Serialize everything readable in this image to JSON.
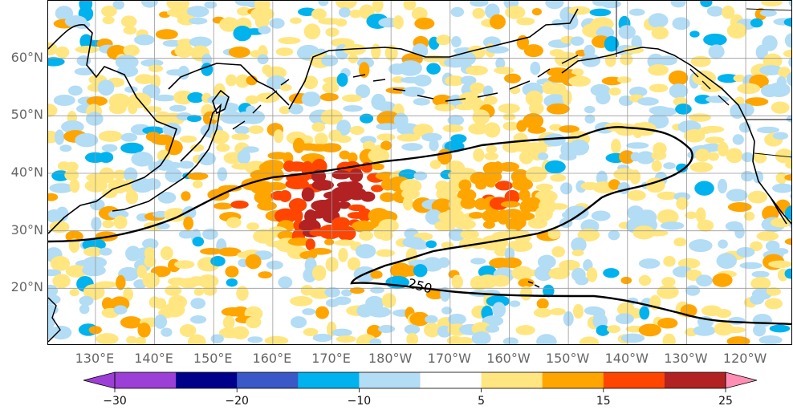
{
  "map": {
    "lat_labels": [
      {
        "text": "60°N",
        "lat": 60
      },
      {
        "text": "50°N",
        "lat": 50
      },
      {
        "text": "40°N",
        "lat": 40
      },
      {
        "text": "30°N",
        "lat": 30
      },
      {
        "text": "20°N",
        "lat": 20
      }
    ],
    "lon_labels": [
      {
        "text": "130°E",
        "lon": 130
      },
      {
        "text": "140°E",
        "lon": 140
      },
      {
        "text": "150°E",
        "lon": 150
      },
      {
        "text": "160°E",
        "lon": 160
      },
      {
        "text": "170°E",
        "lon": 170
      },
      {
        "text": "180°W",
        "lon": 180
      },
      {
        "text": "170°W",
        "lon": 190
      },
      {
        "text": "160°W",
        "lon": 200
      },
      {
        "text": "150°W",
        "lon": 210
      },
      {
        "text": "140°W",
        "lon": 220
      },
      {
        "text": "130°W",
        "lon": 230
      },
      {
        "text": "120°W",
        "lon": 240
      }
    ],
    "contour_label": "250"
  },
  "colorbar": {
    "levels": [
      -30,
      -25,
      -20,
      -15,
      -10,
      -5,
      5,
      10,
      15,
      20,
      25
    ],
    "colors": [
      "#8e2bd1",
      "#00008b",
      "#3a58c8",
      "#00b2ee",
      "#b3dcf5",
      "#ffffff",
      "#ffe680",
      "#ffa500",
      "#ff4500",
      "#b22222",
      "#ff7fa8"
    ],
    "extend_low_color": "#9c3fd6",
    "extend_high_color": "#ff8db4",
    "tick_labels": [
      {
        "text": "−30",
        "value": -30
      },
      {
        "text": "−20",
        "value": -20
      },
      {
        "text": "−10",
        "value": -10
      },
      {
        "text": "5",
        "value": 5
      },
      {
        "text": "15",
        "value": 15
      },
      {
        "text": "25",
        "value": 25
      }
    ]
  },
  "colors": {
    "coast": "#000000",
    "grid": "#999999",
    "tick_text": "#666666"
  }
}
